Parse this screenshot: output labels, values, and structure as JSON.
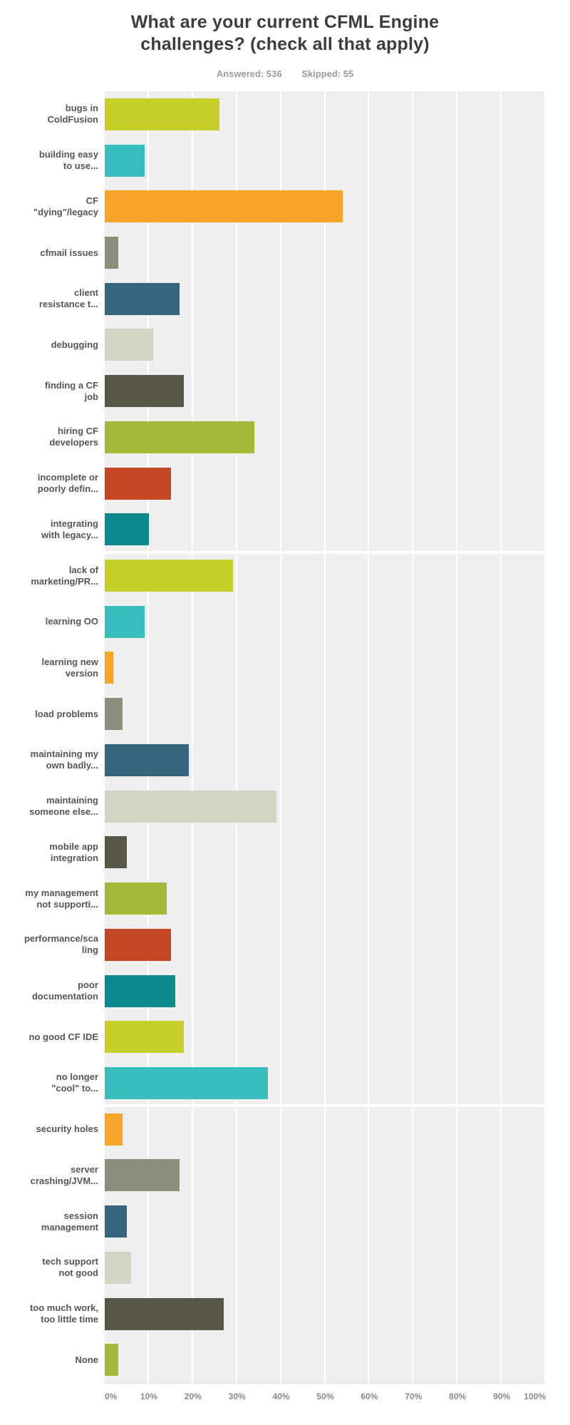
{
  "page": {
    "title": "What are your current CFML Engine\nchallenges? (check all that apply)",
    "answered_text": "Answered: 536",
    "skipped_text": "Skipped: 55"
  },
  "chart_data": {
    "type": "bar",
    "orientation": "horizontal",
    "title": "What are your current CFML Engine challenges? (check all that apply)",
    "answered": 536,
    "skipped": 55,
    "unit": "percent",
    "xlim": [
      0,
      100
    ],
    "x_ticks": [
      "0%",
      "10%",
      "20%",
      "30%",
      "40%",
      "50%",
      "60%",
      "70%",
      "80%",
      "90%",
      "100%"
    ],
    "grid": true,
    "legend": false,
    "plot_background": "#efefef",
    "gridline_color": "#ffffff",
    "palette": [
      "#C6D02A",
      "#39BEBE",
      "#F7A428",
      "#8C8D7B",
      "#35657D",
      "#D4D4C5",
      "#585747",
      "#A4B937",
      "#C54623",
      "#0D8A8D"
    ],
    "categories": [
      "bugs in\nColdFusion",
      "building easy\nto use...",
      "CF\n\"dying\"/legacy",
      "cfmail issues",
      "client\nresistance t...",
      "debugging",
      "finding a CF\njob",
      "hiring CF\ndevelopers",
      "incomplete or\npoorly defin...",
      "integrating\nwith legacy...",
      "lack of\nmarketing/PR...",
      "learning OO",
      "learning new\nversion",
      "load problems",
      "maintaining my\nown badly...",
      "maintaining\nsomeone else...",
      "mobile app\nintegration",
      "my management\nnot supporti...",
      "performance/sca\nling",
      "poor\ndocumentation",
      "no good CF IDE",
      "no longer\n\"cool\" to...",
      "security holes",
      "server\ncrashing/JVM...",
      "session\nmanagement",
      "tech support\nnot good",
      "too much work,\ntoo little time",
      "None"
    ],
    "values": [
      26,
      9,
      54,
      3,
      17,
      11,
      18,
      34,
      15,
      10,
      29,
      9,
      2,
      4,
      19,
      39,
      5,
      14,
      15,
      16,
      18,
      37,
      4,
      17,
      5,
      6,
      27,
      3
    ]
  }
}
